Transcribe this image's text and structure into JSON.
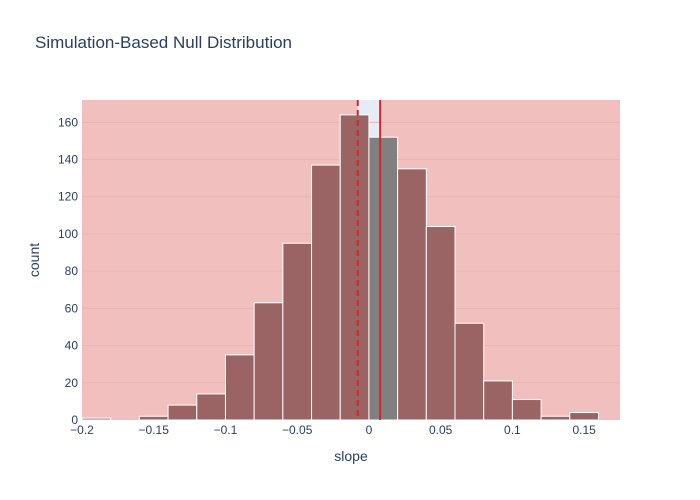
{
  "chart_data": {
    "type": "bar",
    "title": "Simulation-Based Null Distribution",
    "xlabel": "slope",
    "ylabel": "count",
    "xlim": [
      -0.2,
      0.175
    ],
    "ylim": [
      0,
      172
    ],
    "bin_width": 0.02,
    "x_ticks": [
      {
        "value": -0.2,
        "label": "−0.2"
      },
      {
        "value": -0.15,
        "label": "−0.15"
      },
      {
        "value": -0.1,
        "label": "−0.1"
      },
      {
        "value": -0.05,
        "label": "−0.05"
      },
      {
        "value": 0,
        "label": "0"
      },
      {
        "value": 0.05,
        "label": "0.05"
      },
      {
        "value": 0.1,
        "label": "0.1"
      },
      {
        "value": 0.15,
        "label": "0.15"
      }
    ],
    "y_ticks": [
      {
        "value": 0,
        "label": "0"
      },
      {
        "value": 20,
        "label": "20"
      },
      {
        "value": 40,
        "label": "40"
      },
      {
        "value": 60,
        "label": "60"
      },
      {
        "value": 80,
        "label": "80"
      },
      {
        "value": 100,
        "label": "100"
      },
      {
        "value": 120,
        "label": "120"
      },
      {
        "value": 140,
        "label": "140"
      },
      {
        "value": 160,
        "label": "160"
      }
    ],
    "bins": [
      {
        "x0": -0.2,
        "x1": -0.18,
        "count": 1,
        "in_shaded_region": true
      },
      {
        "x0": -0.18,
        "x1": -0.16,
        "count": 0,
        "in_shaded_region": true
      },
      {
        "x0": -0.16,
        "x1": -0.14,
        "count": 2,
        "in_shaded_region": true
      },
      {
        "x0": -0.14,
        "x1": -0.12,
        "count": 8,
        "in_shaded_region": true
      },
      {
        "x0": -0.12,
        "x1": -0.1,
        "count": 14,
        "in_shaded_region": true
      },
      {
        "x0": -0.1,
        "x1": -0.08,
        "count": 35,
        "in_shaded_region": true
      },
      {
        "x0": -0.08,
        "x1": -0.06,
        "count": 63,
        "in_shaded_region": true
      },
      {
        "x0": -0.06,
        "x1": -0.04,
        "count": 95,
        "in_shaded_region": true
      },
      {
        "x0": -0.04,
        "x1": -0.02,
        "count": 137,
        "in_shaded_region": true
      },
      {
        "x0": -0.02,
        "x1": 0.0,
        "count": 164,
        "in_shaded_region": true
      },
      {
        "x0": 0.0,
        "x1": 0.02,
        "count": 152,
        "in_shaded_region": false
      },
      {
        "x0": 0.02,
        "x1": 0.04,
        "count": 135,
        "in_shaded_region": true
      },
      {
        "x0": 0.04,
        "x1": 0.06,
        "count": 104,
        "in_shaded_region": true
      },
      {
        "x0": 0.06,
        "x1": 0.08,
        "count": 52,
        "in_shaded_region": true
      },
      {
        "x0": 0.08,
        "x1": 0.1,
        "count": 21,
        "in_shaded_region": true
      },
      {
        "x0": 0.1,
        "x1": 0.12,
        "count": 11,
        "in_shaded_region": true
      },
      {
        "x0": 0.12,
        "x1": 0.14,
        "count": 2,
        "in_shaded_region": true
      },
      {
        "x0": 0.14,
        "x1": 0.16,
        "count": 4,
        "in_shaded_region": true
      }
    ],
    "observed_statistic": 0.0078,
    "mirrored_statistic": -0.0078,
    "shaded_regions": [
      {
        "x0": -0.2,
        "x1": -0.0078
      },
      {
        "x0": 0.0078,
        "x1": 0.175
      }
    ],
    "grid": true,
    "legend": "none",
    "colors": {
      "plot_background": "#e5ecf6",
      "shade": "#f2bfbf",
      "bar_shaded": "#9b6464",
      "bar_unshaded": "#808080",
      "bar_outline": "#ffffff",
      "observed_line": "#d62728",
      "gridline": "#e8b3b3",
      "text": "#2a3f5f"
    }
  }
}
